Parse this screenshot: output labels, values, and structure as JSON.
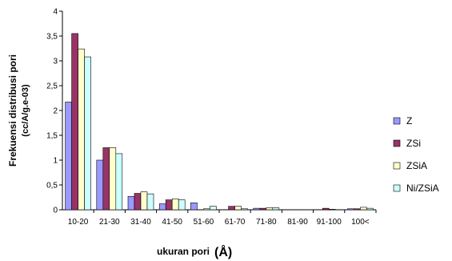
{
  "chart_data": {
    "type": "bar",
    "title": "",
    "xlabel": "ukuran pori",
    "xlabel_unit": "(Å)",
    "ylabel_line1": "Frekuensi distribusi pori",
    "ylabel_line2": "(cc/A/g.e-03)",
    "categories": [
      "10-20",
      "21-30",
      "31-40",
      "41-50",
      "51-60",
      "61-70",
      "71-80",
      "81-90",
      "91-100",
      "100<"
    ],
    "ylim": [
      0,
      4
    ],
    "yticks": [
      "0",
      "0,5",
      "1",
      "1,5",
      "2",
      "2,5",
      "3",
      "3,5",
      "4"
    ],
    "grid": false,
    "legend_position": "right",
    "series": [
      {
        "name": "Z",
        "color": "#9999ff",
        "values": [
          2.17,
          1.0,
          0.27,
          0.12,
          0.14,
          0.0,
          0.03,
          0.0,
          0.0,
          0.02
        ]
      },
      {
        "name": "ZSi",
        "color": "#993366",
        "values": [
          3.55,
          1.25,
          0.33,
          0.2,
          0.0,
          0.07,
          0.03,
          0.0,
          0.03,
          0.02
        ]
      },
      {
        "name": "ZSiA",
        "color": "#ffffcc",
        "values": [
          3.24,
          1.25,
          0.36,
          0.22,
          0.02,
          0.07,
          0.04,
          0.0,
          0.01,
          0.05
        ]
      },
      {
        "name": "Ni/ZSiA",
        "color": "#ccffff",
        "values": [
          3.08,
          1.13,
          0.32,
          0.2,
          0.07,
          0.02,
          0.04,
          0.0,
          0.0,
          0.03
        ]
      }
    ]
  }
}
